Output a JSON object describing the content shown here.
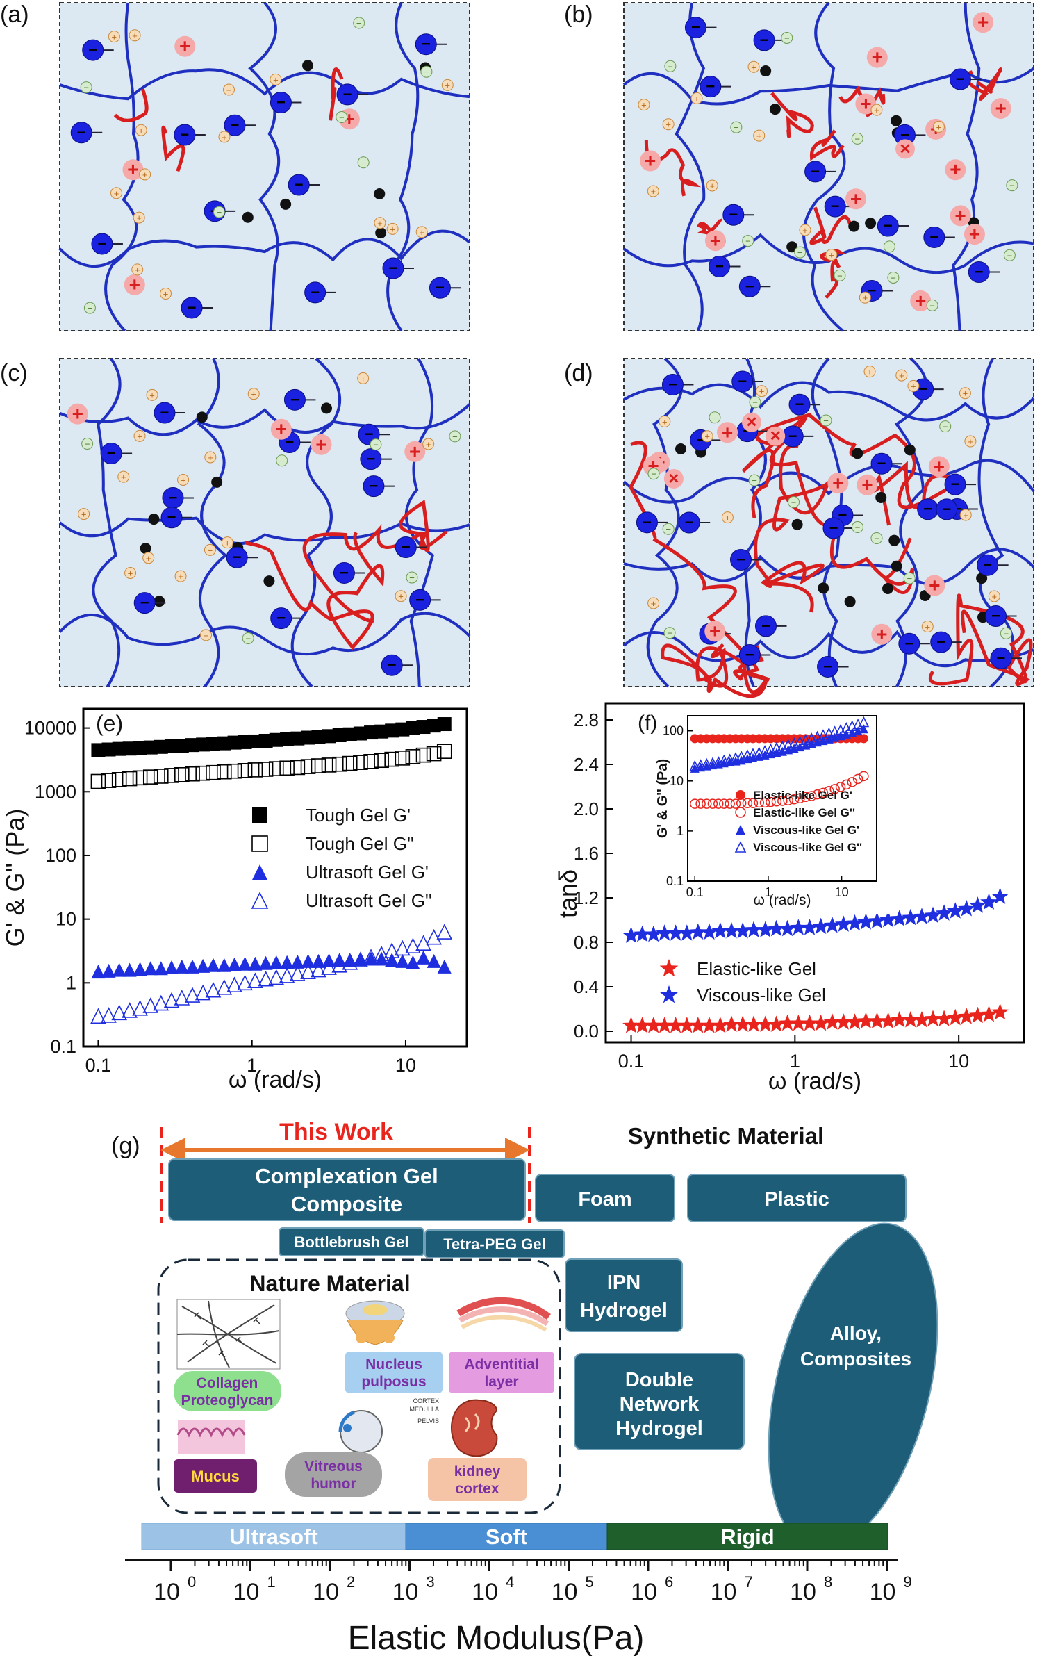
{
  "panels": {
    "a": "(a)",
    "b": "(b)",
    "c": "(c)",
    "d": "(d)",
    "e": "(e)",
    "f": "(f)",
    "g": "(g)"
  },
  "colors": {
    "network_blue": "#1f2fbf",
    "polycation_red": "#d81e1e",
    "gel_background": "#dce8f2",
    "box_teal": "#1d5d78",
    "ultrasoft_bar": "#9cc3e6",
    "soft_bar": "#4a8fd4",
    "rigid_bar": "#1e5f2c",
    "this_work_arrow": "#e8772e",
    "this_work_text": "#e8241d"
  },
  "schematic_symbols": {
    "fixed_anion": "−",
    "free_cation": "+",
    "free_anion": "−",
    "bound_cation": "+",
    "crosslink": "×"
  },
  "chart_e": {
    "ylabel": "G' & G'' (Pa)",
    "xlabel": "ω (rad/s)",
    "x_ticks": [
      "0.1",
      "1",
      "10"
    ],
    "y_ticks": [
      "0.1",
      "1",
      "10",
      "100",
      "1000",
      "10000"
    ],
    "legend": [
      "Tough Gel G'",
      "Tough Gel G''",
      "Ultrasoft Gel G'",
      "Ultrasoft Gel G''"
    ]
  },
  "chart_f": {
    "ylabel": "tanδ",
    "xlabel": "ω (rad/s)",
    "x_ticks": [
      "0.1",
      "1",
      "10"
    ],
    "y_ticks": [
      "0.0",
      "0.4",
      "0.8",
      "1.2",
      "1.6",
      "2.0",
      "2.4",
      "2.8"
    ],
    "legend": [
      "Elastic-like Gel",
      "Viscous-like Gel"
    ],
    "inset": {
      "ylabel": "G' & G'' (Pa)",
      "xlabel": "ω (rad/s)",
      "x_ticks": [
        "0.1",
        "1",
        "10"
      ],
      "y_ticks": [
        "0.1",
        "1",
        "10",
        "100"
      ],
      "legend": [
        "Elastic-like Gel G'",
        "Elastic-like Gel G''",
        "Viscous-like Gel G'",
        "Viscous-like Gel G''"
      ]
    }
  },
  "chart_data": [
    {
      "type": "scatter",
      "x_scale": "log",
      "y_scale": "log",
      "xlim": [
        0.08,
        25
      ],
      "ylim": [
        0.1,
        20000
      ],
      "x": [
        0.1,
        0.117,
        0.137,
        0.16,
        0.187,
        0.219,
        0.256,
        0.3,
        0.35,
        0.41,
        0.48,
        0.56,
        0.66,
        0.77,
        0.9,
        1.05,
        1.23,
        1.44,
        1.69,
        1.98,
        2.32,
        2.71,
        3.17,
        3.71,
        4.34,
        5.08,
        5.95,
        6.96,
        8.14,
        9.53,
        11.15,
        13.05,
        15.27,
        17.87
      ],
      "series": [
        {
          "name": "Tough Gel G'",
          "values": [
            4500,
            4600,
            4700,
            4750,
            4850,
            4950,
            5050,
            5150,
            5250,
            5400,
            5500,
            5600,
            5750,
            5900,
            6000,
            6150,
            6300,
            6500,
            6650,
            6850,
            7050,
            7250,
            7450,
            7700,
            7950,
            8200,
            8500,
            8800,
            9100,
            9500,
            9900,
            10400,
            10900,
            11500
          ]
        },
        {
          "name": "Tough Gel G''",
          "values": [
            1450,
            1500,
            1550,
            1600,
            1650,
            1700,
            1750,
            1800,
            1850,
            1900,
            1950,
            2000,
            2050,
            2100,
            2150,
            2200,
            2250,
            2300,
            2350,
            2400,
            2480,
            2550,
            2620,
            2700,
            2780,
            2880,
            2980,
            3100,
            3230,
            3370,
            3550,
            3750,
            3950,
            4300
          ]
        },
        {
          "name": "Ultrasoft Gel G'",
          "values": [
            1.5,
            1.55,
            1.6,
            1.6,
            1.65,
            1.7,
            1.7,
            1.75,
            1.8,
            1.8,
            1.85,
            1.9,
            1.9,
            1.95,
            2.0,
            2.0,
            2.05,
            2.1,
            2.1,
            2.15,
            2.2,
            2.2,
            2.25,
            2.3,
            2.3,
            2.35,
            2.4,
            2.4,
            2.3,
            2.2,
            2.1,
            2.5,
            2.2,
            1.8
          ]
        },
        {
          "name": "Ultrasoft Gel G''",
          "values": [
            0.3,
            0.31,
            0.34,
            0.37,
            0.4,
            0.44,
            0.48,
            0.53,
            0.58,
            0.64,
            0.7,
            0.77,
            0.85,
            0.93,
            1.0,
            1.08,
            1.15,
            1.22,
            1.3,
            1.4,
            1.5,
            1.6,
            1.75,
            1.9,
            2.1,
            2.3,
            2.55,
            2.85,
            3.2,
            3.5,
            3.8,
            4.2,
            5.2,
            6.3
          ]
        }
      ]
    },
    {
      "type": "scatter",
      "x_scale": "log",
      "xlim": [
        0.07,
        25
      ],
      "ylim": [
        -0.1,
        2.95
      ],
      "x": [
        0.1,
        0.117,
        0.137,
        0.16,
        0.187,
        0.219,
        0.256,
        0.3,
        0.35,
        0.41,
        0.48,
        0.56,
        0.66,
        0.77,
        0.9,
        1.05,
        1.23,
        1.44,
        1.69,
        1.98,
        2.32,
        2.71,
        3.17,
        3.71,
        4.34,
        5.08,
        5.95,
        6.96,
        8.14,
        9.53,
        11.15,
        13.05,
        15.27,
        17.87
      ],
      "series": [
        {
          "name": "Elastic-like Gel",
          "values": [
            0.05,
            0.05,
            0.05,
            0.05,
            0.05,
            0.05,
            0.05,
            0.05,
            0.05,
            0.06,
            0.06,
            0.06,
            0.06,
            0.06,
            0.07,
            0.07,
            0.07,
            0.07,
            0.08,
            0.08,
            0.08,
            0.09,
            0.09,
            0.09,
            0.1,
            0.1,
            0.1,
            0.11,
            0.11,
            0.12,
            0.13,
            0.14,
            0.15,
            0.17
          ]
        },
        {
          "name": "Viscous-like Gel",
          "values": [
            0.86,
            0.87,
            0.87,
            0.88,
            0.88,
            0.88,
            0.89,
            0.89,
            0.9,
            0.9,
            0.9,
            0.91,
            0.91,
            0.92,
            0.92,
            0.93,
            0.93,
            0.94,
            0.95,
            0.96,
            0.97,
            0.98,
            0.99,
            1.0,
            1.01,
            1.02,
            1.03,
            1.04,
            1.06,
            1.08,
            1.1,
            1.13,
            1.16,
            1.21
          ]
        }
      ]
    },
    {
      "type": "scatter",
      "x_scale": "log",
      "y_scale": "log",
      "xlim": [
        0.08,
        30
      ],
      "ylim": [
        0.1,
        200
      ],
      "x": [
        0.1,
        0.12,
        0.145,
        0.175,
        0.21,
        0.25,
        0.3,
        0.36,
        0.43,
        0.52,
        0.62,
        0.75,
        0.9,
        1.08,
        1.3,
        1.56,
        1.87,
        2.25,
        2.7,
        3.24,
        3.89,
        4.67,
        5.6,
        6.72,
        8.06,
        9.68,
        11.6,
        13.9,
        16.7,
        20.0
      ],
      "series": [
        {
          "name": "Elastic-like Gel G'",
          "values": [
            70,
            70,
            70,
            70,
            70,
            70,
            70,
            70,
            70,
            70,
            70,
            70,
            70,
            70,
            70,
            70,
            70,
            70,
            70,
            70,
            70,
            70,
            70,
            70,
            70,
            70,
            70,
            70,
            70,
            70
          ]
        },
        {
          "name": "Elastic-like Gel G''",
          "values": [
            3.5,
            3.5,
            3.5,
            3.5,
            3.5,
            3.5,
            3.5,
            3.5,
            3.6,
            3.6,
            3.6,
            3.7,
            3.7,
            3.8,
            3.9,
            4.0,
            4.1,
            4.3,
            4.5,
            4.8,
            5.0,
            5.4,
            5.8,
            6.3,
            6.9,
            7.6,
            8.5,
            9.5,
            11,
            12.5
          ]
        },
        {
          "name": "Viscous-like Gel G'",
          "values": [
            18,
            19,
            20,
            21,
            22,
            23,
            24,
            25,
            26,
            28,
            29,
            31,
            33,
            35,
            37,
            39,
            42,
            45,
            48,
            52,
            56,
            60,
            64,
            69,
            74,
            80,
            86,
            93,
            100,
            110
          ]
        },
        {
          "name": "Viscous-like Gel G''",
          "values": [
            20,
            21,
            22,
            23,
            24,
            26,
            27,
            29,
            31,
            33,
            35,
            37,
            40,
            43,
            46,
            49,
            53,
            57,
            61,
            66,
            71,
            77,
            83,
            90,
            97,
            105,
            115,
            125,
            135,
            150
          ]
        }
      ]
    }
  ],
  "g": {
    "this_work": "This Work",
    "synthetic_material": "Synthetic Material",
    "boxes": {
      "complexation": "Complexation Gel Composite",
      "foam": "Foam",
      "plastic": "Plastic",
      "bottlebrush": "Bottlebrush Gel",
      "tetrapeg": "Tetra-PEG Gel",
      "ipn": "IPN Hydrogel",
      "double_network": "Double Network Hydrogel",
      "alloy": "Alloy, Composites"
    },
    "nature_material": "Nature Material",
    "nature_items": {
      "collagen": "Collagen Proteoglycan",
      "nucleus": "Nucleus pulposus",
      "adventitial": "Adventitial layer",
      "mucus": "Mucus",
      "vitreous": "Vitreous humor",
      "kidney": "kidney cortex",
      "kidney_labels": [
        "CORTEX",
        "MEDULLA",
        "PELVIS"
      ]
    },
    "scale": {
      "ultrasoft": "Ultrasoft",
      "soft": "Soft",
      "rigid": "Rigid",
      "axis_label": "Elastic Modulus(Pa)",
      "tick_base": "10",
      "exponents": [
        "0",
        "1",
        "2",
        "3",
        "4",
        "5",
        "6",
        "7",
        "8",
        "9"
      ]
    }
  }
}
